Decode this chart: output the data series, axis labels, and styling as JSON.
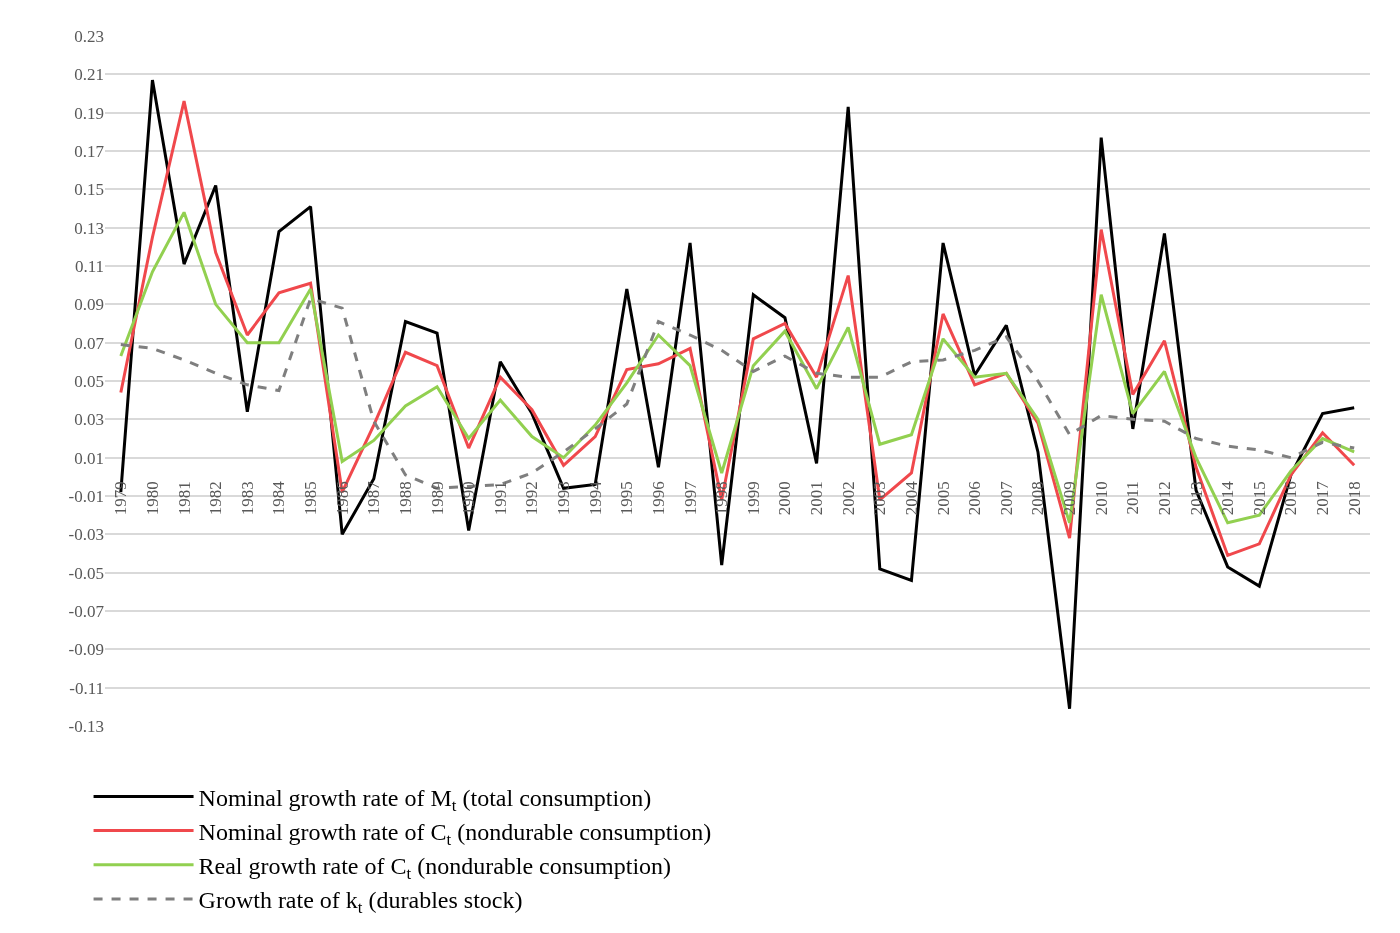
{
  "chart_data": {
    "type": "line",
    "categories": [
      "1979",
      "1980",
      "1981",
      "1982",
      "1983",
      "1984",
      "1985",
      "1986",
      "1987",
      "1988",
      "1989",
      "1990",
      "1991",
      "1992",
      "1993",
      "1994",
      "1995",
      "1996",
      "1997",
      "1998",
      "1999",
      "2000",
      "2001",
      "2002",
      "2003",
      "2004",
      "2005",
      "2006",
      "2007",
      "2008",
      "2009",
      "2010",
      "2011",
      "2012",
      "2013",
      "2014",
      "2015",
      "2016",
      "2017",
      "2018"
    ],
    "series": [
      {
        "name": "Nominal growth rate of M$_{t}$ (total consumption)",
        "color": "#000000",
        "line_style": "solid",
        "values": [
          -0.008,
          0.207,
          0.111,
          0.152,
          0.034,
          0.128,
          0.141,
          -0.03,
          -0.001,
          0.081,
          0.075,
          -0.028,
          0.06,
          0.033,
          -0.006,
          -0.004,
          0.098,
          0.005,
          0.122,
          -0.046,
          0.095,
          0.083,
          0.007,
          0.193,
          -0.048,
          -0.054,
          0.122,
          0.053,
          0.079,
          0.013,
          -0.121,
          0.177,
          0.025,
          0.127,
          -0.007,
          -0.047,
          -0.057,
          0.001,
          0.033,
          0.036
        ]
      },
      {
        "name": "Nominal growth rate of C$_{t}$ (nondurable consumption)",
        "color": "#f0484c",
        "line_style": "solid",
        "values": [
          0.044,
          0.125,
          0.196,
          0.117,
          0.074,
          0.096,
          0.101,
          -0.008,
          0.027,
          0.065,
          0.058,
          0.015,
          0.052,
          0.035,
          0.006,
          0.021,
          0.056,
          0.059,
          0.067,
          -0.012,
          0.072,
          0.08,
          0.052,
          0.105,
          -0.012,
          0.002,
          0.085,
          0.048,
          0.054,
          0.028,
          -0.032,
          0.129,
          0.043,
          0.071,
          0.005,
          -0.041,
          -0.035,
          0.001,
          0.023,
          0.006
        ]
      },
      {
        "name": "Real growth rate of C$_{t}$ (nondurable consumption)",
        "color": "#92d050",
        "line_style": "solid",
        "values": [
          0.063,
          0.107,
          0.138,
          0.09,
          0.07,
          0.07,
          0.098,
          0.008,
          0.019,
          0.037,
          0.047,
          0.02,
          0.04,
          0.021,
          0.01,
          0.027,
          0.049,
          0.074,
          0.058,
          0.002,
          0.058,
          0.076,
          0.046,
          0.078,
          0.017,
          0.022,
          0.072,
          0.052,
          0.054,
          0.03,
          -0.024,
          0.095,
          0.033,
          0.055,
          0.01,
          -0.024,
          -0.02,
          0.003,
          0.02,
          0.013
        ]
      },
      {
        "name": "Growth rate of k$_{t}$ (durables stock)",
        "color": "#7f7f7f",
        "line_style": "dashed",
        "values": [
          0.069,
          0.067,
          0.061,
          0.054,
          0.048,
          0.045,
          0.093,
          0.088,
          0.029,
          0.001,
          -0.006,
          -0.005,
          -0.004,
          0.002,
          0.013,
          0.025,
          0.038,
          0.081,
          0.074,
          0.066,
          0.055,
          0.063,
          0.054,
          0.052,
          0.052,
          0.06,
          0.061,
          0.066,
          0.073,
          0.05,
          0.022,
          0.032,
          0.03,
          0.029,
          0.02,
          0.016,
          0.014,
          0.01,
          0.018,
          0.015
        ]
      }
    ],
    "ylim": [
      -0.13,
      0.23
    ],
    "yticks": [
      0.23,
      0.21,
      0.19,
      0.17,
      0.15,
      0.13,
      0.11,
      0.09,
      0.07,
      0.05,
      0.03,
      0.01,
      -0.01,
      -0.03,
      -0.05,
      -0.07,
      -0.09,
      -0.11,
      -0.13
    ],
    "grid": "y",
    "legend": "bottom",
    "marker": "none"
  }
}
